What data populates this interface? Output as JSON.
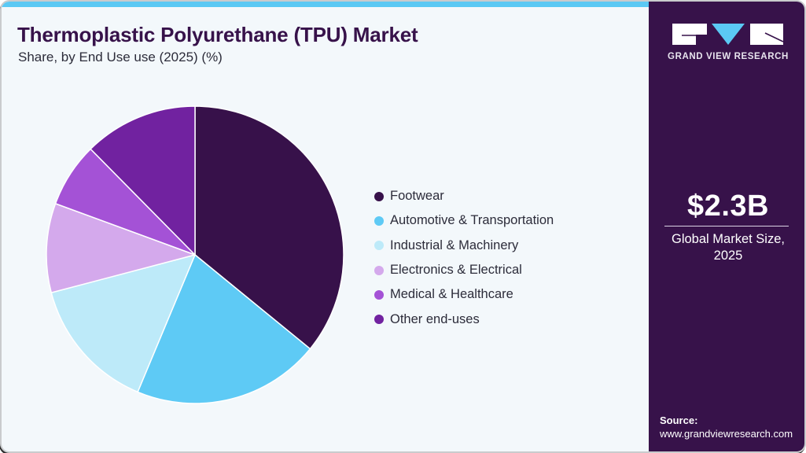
{
  "header": {
    "title": "Thermoplastic Polyurethane (TPU) Market",
    "subtitle": "Share, by End Use use (2025) (%)"
  },
  "colors": {
    "accent_bar": "#5bc9f4",
    "side_panel": "#37124a",
    "background": "#f3f8fb",
    "title": "#37124a"
  },
  "legend": {
    "items": [
      {
        "label": "Footwear",
        "color": "#37114a"
      },
      {
        "label": "Automotive & Transportation",
        "color": "#5ecaf5"
      },
      {
        "label": "Industrial & Machinery",
        "color": "#bdeaf9"
      },
      {
        "label": "Electronics & Electrical",
        "color": "#d4a9ec"
      },
      {
        "label": "Medical & Healthcare",
        "color": "#a452d6"
      },
      {
        "label": "Other end-uses",
        "color": "#7122a0"
      }
    ]
  },
  "side_panel": {
    "logo_icon": "gvr-logo-icon",
    "brand": "GRAND VIEW RESEARCH",
    "market_size": "$2.3B",
    "market_label_line1": "Global Market Size,",
    "market_label_line2": "2025",
    "source_label": "Source:",
    "source_url": "www.grandviewresearch.com"
  },
  "chart_data": {
    "type": "pie",
    "title": "Thermoplastic Polyurethane (TPU) Market",
    "subtitle": "Share, by End Use use (2025) (%)",
    "categories": [
      "Footwear",
      "Automotive & Transportation",
      "Industrial & Machinery",
      "Electronics & Electrical",
      "Medical & Healthcare",
      "Other end-uses"
    ],
    "values": [
      35.9,
      20.4,
      14.6,
      9.7,
      7.0,
      12.4
    ],
    "colors": [
      "#37114a",
      "#5ecaf5",
      "#bdeaf9",
      "#d4a9ec",
      "#a452d6",
      "#7122a0"
    ],
    "start_angle": "12 o'clock",
    "direction": "clockwise",
    "legend_position": "right",
    "units": "%"
  }
}
